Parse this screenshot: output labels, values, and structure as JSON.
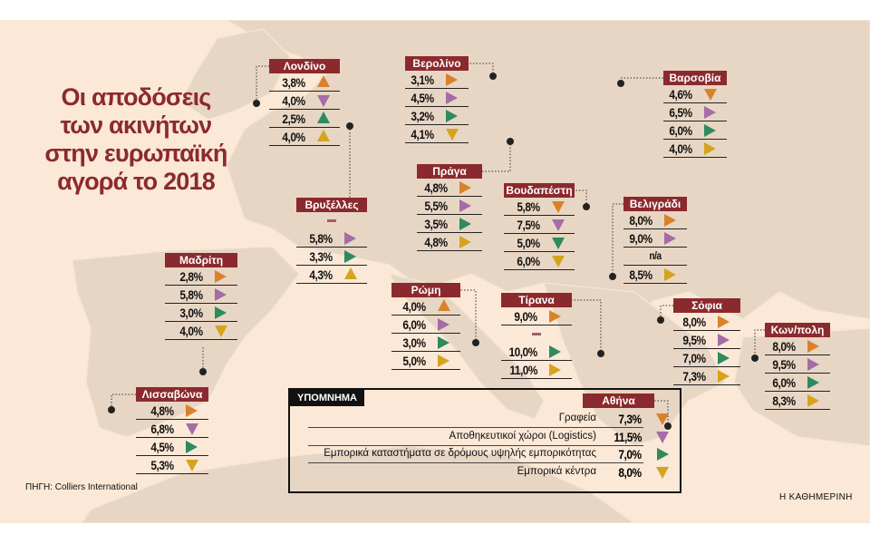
{
  "title": [
    "Οι αποδόσεις",
    "των ακινήτων",
    "στην ευρωπαϊκή",
    "αγορά το 2018"
  ],
  "colors": {
    "header": "#8b2a2e",
    "offices": "#d9822b",
    "logistics": "#a56ca6",
    "high_street": "#2e8a5f",
    "shopping_centres": "#d4a41e"
  },
  "legend": {
    "title": "ΥΠΟΜΝΗΜΑ",
    "city": "Αθήνα",
    "rows": [
      {
        "label": "Γραφεία",
        "value": "7,3%",
        "dir": "down",
        "cat": "offices"
      },
      {
        "label": "Αποθηκευτικοί χώροι (Logistics)",
        "value": "11,5%",
        "dir": "down",
        "cat": "logistics"
      },
      {
        "label": "Εμπορικά καταστήματα σε δρόμους υψηλής εμπορικότητας",
        "value": "7,0%",
        "dir": "right",
        "cat": "high_street"
      },
      {
        "label": "Εμπορικά κέντρα",
        "value": "8,0%",
        "dir": "down",
        "cat": "shopping_centres"
      }
    ]
  },
  "cities": [
    {
      "name": "Λονδίνο",
      "rows": [
        {
          "value": "3,8%",
          "dir": "up"
        },
        {
          "value": "4,0%",
          "dir": "down"
        },
        {
          "value": "2,5%",
          "dir": "up"
        },
        {
          "value": "4,0%",
          "dir": "up"
        }
      ]
    },
    {
      "name": "Βρυξέλλες",
      "rows": [
        {
          "value": "–",
          "dir": "none"
        },
        {
          "value": "5,8%",
          "dir": "right"
        },
        {
          "value": "3,3%",
          "dir": "right"
        },
        {
          "value": "4,3%",
          "dir": "up"
        }
      ]
    },
    {
      "name": "Μαδρίτη",
      "rows": [
        {
          "value": "2,8%",
          "dir": "right"
        },
        {
          "value": "5,8%",
          "dir": "right"
        },
        {
          "value": "3,0%",
          "dir": "right"
        },
        {
          "value": "4,0%",
          "dir": "down"
        }
      ]
    },
    {
      "name": "Λισσαβώνα",
      "rows": [
        {
          "value": "4,8%",
          "dir": "right"
        },
        {
          "value": "6,8%",
          "dir": "down"
        },
        {
          "value": "4,5%",
          "dir": "right"
        },
        {
          "value": "5,3%",
          "dir": "down"
        }
      ]
    },
    {
      "name": "Βερολίνο",
      "rows": [
        {
          "value": "3,1%",
          "dir": "right"
        },
        {
          "value": "4,5%",
          "dir": "right"
        },
        {
          "value": "3,2%",
          "dir": "right"
        },
        {
          "value": "4,1%",
          "dir": "down"
        }
      ]
    },
    {
      "name": "Πράγα",
      "rows": [
        {
          "value": "4,8%",
          "dir": "right"
        },
        {
          "value": "5,5%",
          "dir": "right"
        },
        {
          "value": "3,5%",
          "dir": "right"
        },
        {
          "value": "4,8%",
          "dir": "right"
        }
      ]
    },
    {
      "name": "Βουδαπέστη",
      "rows": [
        {
          "value": "5,8%",
          "dir": "down"
        },
        {
          "value": "7,5%",
          "dir": "down"
        },
        {
          "value": "5,0%",
          "dir": "down"
        },
        {
          "value": "6,0%",
          "dir": "down"
        }
      ]
    },
    {
      "name": "Βαρσοβία",
      "rows": [
        {
          "value": "4,6%",
          "dir": "down"
        },
        {
          "value": "6,5%",
          "dir": "right"
        },
        {
          "value": "6,0%",
          "dir": "right"
        },
        {
          "value": "4,0%",
          "dir": "right"
        }
      ]
    },
    {
      "name": "Βελιγράδι",
      "rows": [
        {
          "value": "8,0%",
          "dir": "right"
        },
        {
          "value": "9,0%",
          "dir": "right"
        },
        {
          "value": "n/a",
          "dir": "none"
        },
        {
          "value": "8,5%",
          "dir": "right"
        }
      ]
    },
    {
      "name": "Ρώμη",
      "rows": [
        {
          "value": "4,0%",
          "dir": "up"
        },
        {
          "value": "6,0%",
          "dir": "right"
        },
        {
          "value": "3,0%",
          "dir": "right"
        },
        {
          "value": "5,0%",
          "dir": "right"
        }
      ]
    },
    {
      "name": "Τίρανα",
      "rows": [
        {
          "value": "9,0%",
          "dir": "right"
        },
        {
          "value": "–",
          "dir": "none"
        },
        {
          "value": "10,0%",
          "dir": "right"
        },
        {
          "value": "11,0%",
          "dir": "right"
        }
      ]
    },
    {
      "name": "Σόφια",
      "rows": [
        {
          "value": "8,0%",
          "dir": "right"
        },
        {
          "value": "9,5%",
          "dir": "right"
        },
        {
          "value": "7,0%",
          "dir": "right"
        },
        {
          "value": "7,3%",
          "dir": "right"
        }
      ]
    },
    {
      "name": "Κων/πολη",
      "rows": [
        {
          "value": "8,0%",
          "dir": "right"
        },
        {
          "value": "9,5%",
          "dir": "right"
        },
        {
          "value": "6,0%",
          "dir": "right"
        },
        {
          "value": "8,3%",
          "dir": "right"
        }
      ]
    }
  ],
  "categories": [
    "offices",
    "logistics",
    "high_street",
    "shopping_centres"
  ],
  "source": "ΠΗΓΗ: Colliers International",
  "brand": "Η ΚΑΘΗΜΕΡΙΝΗ"
}
